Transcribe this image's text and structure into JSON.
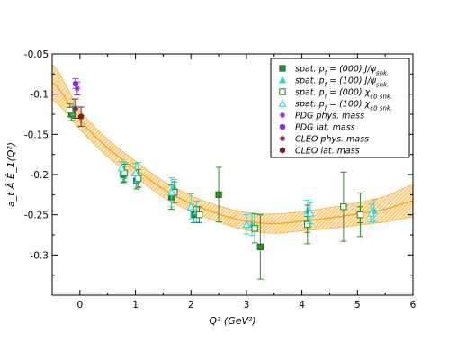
{
  "chart_data": {
    "type": "scatter",
    "xlabel": "Q² (GeV²)",
    "ylabel": "a_t Â Ê_1(Q²)",
    "xlim": [
      -0.5,
      6
    ],
    "ylim": [
      -0.35,
      -0.05
    ],
    "xticks": [
      "0",
      "1",
      "2",
      "3",
      "4",
      "5",
      "6"
    ],
    "yticks": [
      "-0.05",
      "-0.1",
      "-0.15",
      "-0.2",
      "-0.25",
      "-0.3"
    ],
    "grid": false,
    "legend_position": "top-right",
    "fit": {
      "description": "quadratic fit with error band",
      "color": "#f5a623",
      "x": [
        -0.5,
        0,
        0.5,
        1,
        1.5,
        2,
        2.5,
        3,
        3.5,
        4,
        4.5,
        5,
        5.5,
        6
      ],
      "y": [
        -0.085,
        -0.132,
        -0.167,
        -0.193,
        -0.218,
        -0.236,
        -0.249,
        -0.258,
        -0.261,
        -0.258,
        -0.254,
        -0.249,
        -0.243,
        -0.233
      ],
      "band_halfwidth": [
        0.022,
        0.012,
        0.011,
        0.01,
        0.01,
        0.01,
        0.01,
        0.011,
        0.012,
        0.012,
        0.013,
        0.014,
        0.016,
        0.02
      ]
    },
    "series": [
      {
        "name": "spat. p_f = (000) J/ψ_snk.",
        "name_parts": {
          "pre": "spat. p",
          "sub1": "f",
          "mid": " = (000) J/ψ",
          "sub2": "snk."
        },
        "marker": "square-filled",
        "color": "#2e8b2e",
        "x": [
          -0.15,
          0.78,
          1.02,
          1.65,
          2.05,
          2.5,
          3.25,
          4.1,
          5.05
        ],
        "y": [
          -0.125,
          -0.2,
          -0.208,
          -0.228,
          -0.25,
          -0.225,
          -0.29,
          -0.262,
          -0.25
        ],
        "yerr": [
          0.008,
          0.01,
          0.01,
          0.015,
          0.01,
          0.034,
          0.04,
          0.01,
          0.01
        ]
      },
      {
        "name": "spat. p_f = (100) J/ψ_snk.",
        "name_parts": {
          "pre": "spat. p",
          "sub1": "f",
          "mid": " = (100) J/ψ",
          "sub2": "snk."
        },
        "marker": "triangle-filled",
        "color": "#33d6d6",
        "x": [
          -0.12,
          0.8,
          1.05,
          1.7,
          2.1,
          3.1,
          4.1,
          5.3
        ],
        "y": [
          -0.116,
          -0.195,
          -0.2,
          -0.216,
          -0.246,
          -0.262,
          -0.245,
          -0.245
        ],
        "yerr": [
          0.01,
          0.01,
          0.015,
          0.01,
          0.013,
          0.014,
          0.013,
          0.014
        ]
      },
      {
        "name": "spat. p_f = (000) χ_c0 snk.",
        "name_parts": {
          "pre": "spat. p",
          "sub1": "f",
          "mid": " = (000) χ",
          "sub2": "c0 snk."
        },
        "marker": "square-open",
        "color": "#2e8b2e",
        "x": [
          -0.18,
          0.8,
          1.05,
          1.7,
          2.15,
          3.15,
          4.1,
          4.75,
          5.05
        ],
        "y": [
          -0.12,
          -0.198,
          -0.205,
          -0.222,
          -0.25,
          -0.267,
          -0.262,
          -0.24,
          -0.25
        ],
        "yerr": [
          0.008,
          0.011,
          0.011,
          0.013,
          0.01,
          0.018,
          0.024,
          0.043,
          0.027
        ]
      },
      {
        "name": "spat. p_f = (100) χ_c0 snk.",
        "name_parts": {
          "pre": "spat. p",
          "sub1": "f",
          "mid": " = (100) χ",
          "sub2": "c0 snk."
        },
        "marker": "triangle-open",
        "color": "#33d6d6",
        "x": [
          0.75,
          1.0,
          1.65,
          2.0,
          3.0,
          4.15,
          5.25
        ],
        "y": [
          -0.192,
          -0.198,
          -0.222,
          -0.24,
          -0.262,
          -0.248,
          -0.248
        ],
        "yerr": [
          0.008,
          0.012,
          0.018,
          0.016,
          0.012,
          0.013,
          0.011
        ]
      },
      {
        "name": "PDG phys. mass",
        "marker": "star",
        "color": "#8a2be2",
        "x": [
          -0.05
        ],
        "y": [
          -0.093
        ],
        "yerr": [
          0.008
        ]
      },
      {
        "name": "PDG lat. mass",
        "marker": "hexagon",
        "color": "#8a2be2",
        "x": [
          -0.08
        ],
        "y": [
          -0.087
        ],
        "yerr": [
          0.006
        ]
      },
      {
        "name": "CLEO phys. mass",
        "marker": "star",
        "color": "#7b1a33",
        "x": [
          -0.08
        ],
        "y": [
          -0.118
        ],
        "yerr": [
          0.012
        ]
      },
      {
        "name": "CLEO lat. mass",
        "marker": "hexagon",
        "color": "#7b1a33",
        "x": [
          0.02
        ],
        "y": [
          -0.128
        ],
        "yerr": [
          0.012
        ]
      }
    ]
  }
}
